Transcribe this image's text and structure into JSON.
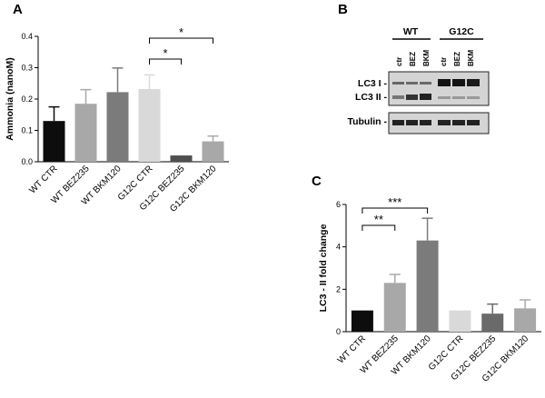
{
  "panel_labels": {
    "a": "A",
    "b": "B",
    "c": "C"
  },
  "blot": {
    "group_labels": [
      "WT",
      "G12C"
    ],
    "lane_labels": [
      "ctr",
      "BEZ",
      "BKM",
      "ctr",
      "BEZ",
      "BKM"
    ],
    "row_labels": [
      "LC3 I -",
      "LC3 II -",
      "Tubulin -"
    ]
  },
  "chart_data": [
    {
      "type": "bar",
      "panel": "A",
      "title": "",
      "xlabel": "",
      "ylabel": "Ammonia (nanoM)",
      "ylim": [
        0,
        0.4
      ],
      "yticks": [
        "0.0",
        "0.1",
        "0.2",
        "0.3",
        "0.4"
      ],
      "categories": [
        "WT CTR",
        "WT BEZ235",
        "WT BKM120",
        "G12C CTR",
        "G12C BEZ235",
        "G12C BKM120"
      ],
      "values": [
        0.13,
        0.185,
        0.222,
        0.232,
        0.02,
        0.065
      ],
      "errors": [
        0.045,
        0.045,
        0.077,
        0.045,
        0.0,
        0.017
      ],
      "colors": [
        "#0d0d0d",
        "#a8a8a8",
        "#7b7b7b",
        "#d9d9d9",
        "#4f4f4f",
        "#a8a8a8"
      ],
      "significance": [
        {
          "from": 3,
          "to": 4,
          "label": "*"
        },
        {
          "from": 3,
          "to": 5,
          "label": "*"
        }
      ],
      "grid": false
    },
    {
      "type": "bar",
      "panel": "C",
      "title": "",
      "xlabel": "",
      "ylabel": "LC3 - II fold change",
      "ylim": [
        0,
        6
      ],
      "yticks": [
        "0",
        "2",
        "4",
        "6"
      ],
      "categories": [
        "WT CTR",
        "WT BEZ235",
        "WT BKM120",
        "G12C CTR",
        "G12C BEZ235",
        "G12C BKM120"
      ],
      "values": [
        1.0,
        2.3,
        4.3,
        1.0,
        0.85,
        1.1
      ],
      "errors": [
        0.0,
        0.4,
        1.05,
        0.0,
        0.45,
        0.4
      ],
      "colors": [
        "#0d0d0d",
        "#a8a8a8",
        "#7b7b7b",
        "#d9d9d9",
        "#6a6a6a",
        "#a8a8a8"
      ],
      "significance": [
        {
          "from": 0,
          "to": 1,
          "label": "**"
        },
        {
          "from": 0,
          "to": 2,
          "label": "***"
        }
      ],
      "grid": false
    }
  ]
}
